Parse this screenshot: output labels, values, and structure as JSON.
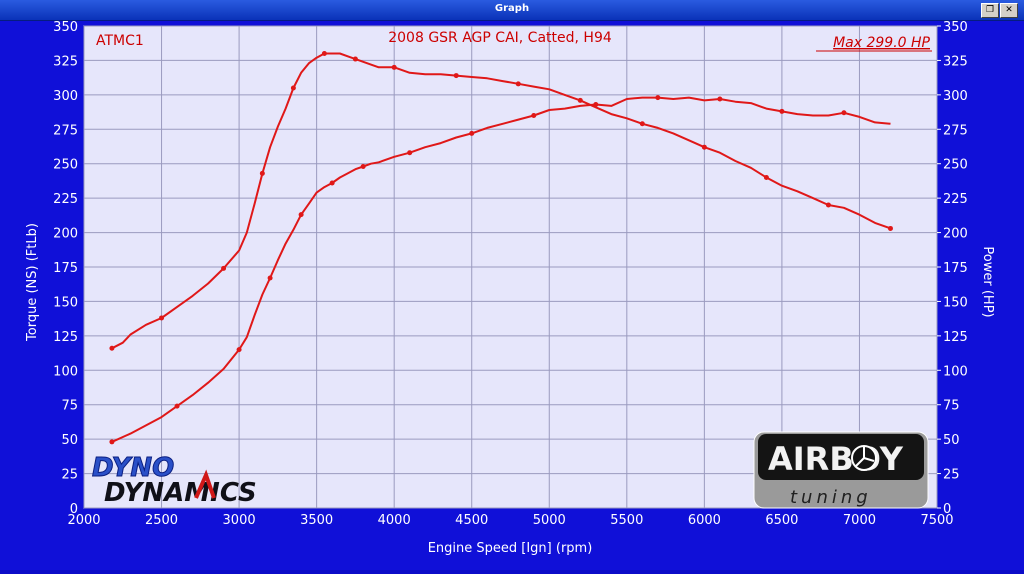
{
  "window": {
    "title": "Graph",
    "buttons": [
      {
        "icon": "restore-icon",
        "label": "❐"
      },
      {
        "icon": "close-icon",
        "label": "✕"
      }
    ]
  },
  "chart_data": {
    "type": "line",
    "title": "2008 GSR AGP CAI, Catted, H94",
    "run_label": "ATMC1",
    "max_label": "Max 299.0 HP",
    "xlabel": "Engine Speed [Ign] (rpm)",
    "ylabel_left": "Torque (NS) (FtLb)",
    "ylabel_right": "Power (HP)",
    "xlim": [
      2000,
      7500
    ],
    "ylim": [
      0,
      350
    ],
    "x_ticks": [
      "2000",
      "2500",
      "3000",
      "3500",
      "4000",
      "4500",
      "5000",
      "5500",
      "6000",
      "6500",
      "7000",
      "7500"
    ],
    "y_ticks": [
      "0",
      "25",
      "50",
      "75",
      "100",
      "125",
      "150",
      "175",
      "200",
      "225",
      "250",
      "275",
      "300",
      "325",
      "350"
    ],
    "grid": true,
    "colors": {
      "background": "#e6e6fb",
      "grid": "#9a9abf",
      "series": "#e01818",
      "text": "#ffffff",
      "chart_text": "#cc0000"
    },
    "series": [
      {
        "name": "",
        "x": [
          2180,
          2250,
          2300,
          2400,
          2500,
          2600,
          2700,
          2800,
          2900,
          3000,
          3050,
          3100,
          3150,
          3200,
          3250,
          3300,
          3350,
          3400,
          3450,
          3500,
          3550,
          3600,
          3650,
          3700,
          3750,
          3800,
          3850,
          3900,
          4000,
          4100,
          4200,
          4300,
          4400,
          4500,
          4600,
          4700,
          4800,
          4900,
          5000,
          5100,
          5200,
          5300,
          5400,
          5500,
          5600,
          5700,
          5800,
          5900,
          6000,
          6100,
          6200,
          6300,
          6400,
          6500,
          6600,
          6700,
          6800,
          6900,
          7000,
          7100,
          7200
        ],
        "y": [
          116,
          120,
          126,
          133,
          138,
          146,
          154,
          163,
          174,
          187,
          200,
          221,
          243,
          262,
          277,
          290,
          305,
          316,
          323,
          327,
          330,
          330,
          330,
          328,
          326,
          324,
          322,
          320,
          320,
          316,
          315,
          315,
          314,
          313,
          312,
          310,
          308,
          306,
          304,
          300,
          296,
          291,
          286,
          283,
          279,
          276,
          272,
          267,
          262,
          258,
          252,
          247,
          240,
          234,
          230,
          225,
          220,
          218,
          213,
          207,
          203
        ]
      },
      {
        "name": "",
        "x": [
          2180,
          2300,
          2400,
          2500,
          2600,
          2700,
          2800,
          2900,
          3000,
          3050,
          3100,
          3150,
          3200,
          3250,
          3300,
          3350,
          3400,
          3450,
          3500,
          3550,
          3600,
          3650,
          3700,
          3750,
          3800,
          3850,
          3900,
          4000,
          4100,
          4200,
          4300,
          4400,
          4500,
          4600,
          4700,
          4800,
          4900,
          5000,
          5100,
          5200,
          5300,
          5400,
          5500,
          5600,
          5700,
          5800,
          5900,
          6000,
          6100,
          6200,
          6300,
          6400,
          6500,
          6600,
          6700,
          6800,
          6900,
          7000,
          7100,
          7200
        ],
        "y": [
          48,
          54,
          60,
          66,
          74,
          82,
          91,
          101,
          115,
          124,
          140,
          155,
          167,
          180,
          192,
          202,
          213,
          221,
          229,
          233,
          236,
          240,
          243,
          246,
          248,
          250,
          251,
          255,
          258,
          262,
          265,
          269,
          272,
          276,
          279,
          282,
          285,
          289,
          290,
          292,
          293,
          292,
          297,
          298,
          298,
          297,
          298,
          296,
          297,
          295,
          294,
          290,
          288,
          286,
          285,
          285,
          287,
          284,
          280,
          279
        ]
      }
    ]
  },
  "logos": {
    "dyno_top": "DYNO",
    "dyno_bottom": "DYNAMICS",
    "airboy": "AIRBOY",
    "airboy_sub": "tuning"
  }
}
